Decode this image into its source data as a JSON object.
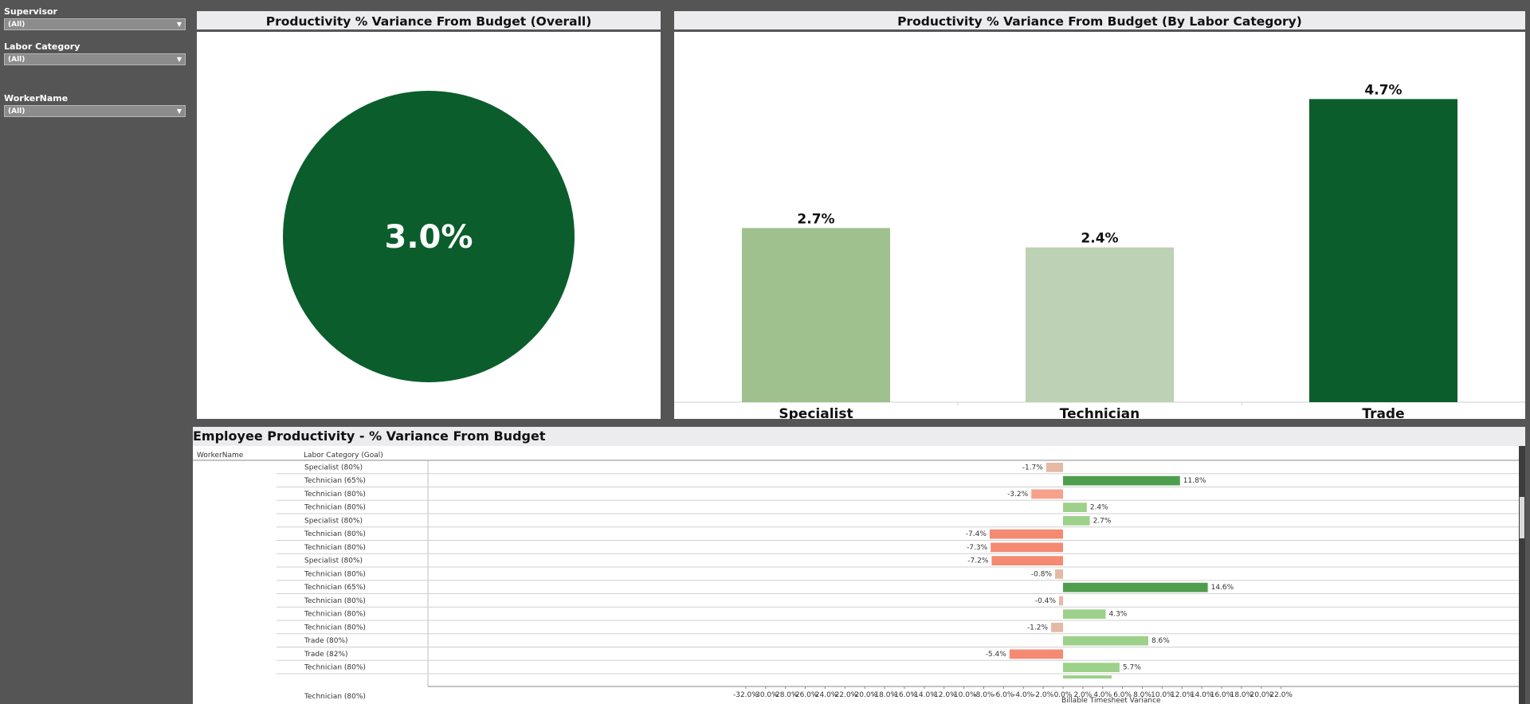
{
  "filters": [
    {
      "label": "Supervisor",
      "value": "(All)"
    },
    {
      "label": "Labor Category",
      "value": "(All)"
    },
    {
      "label": "WorkerName",
      "value": "(All)"
    }
  ],
  "overall": {
    "title": "Productivity % Variance From Budget (Overall)",
    "value_label": "3.0%",
    "color": "#0b5e2c"
  },
  "by_category": {
    "title": "Productivity % Variance From Budget (By Labor Category)"
  },
  "employee": {
    "title": "Employee Productivity - % Variance From Budget",
    "col_worker": "WorkerName",
    "col_category": "Labor Category (Goal)",
    "x_axis_label": "Billable Timesheet Variance",
    "partial_row_label": "Technician (80%)"
  },
  "chart_data": [
    {
      "type": "bar",
      "title": "Productivity % Variance From Budget (By Labor Category)",
      "categories": [
        "Specialist",
        "Technician",
        "Trade"
      ],
      "values": [
        2.7,
        2.4,
        4.7
      ],
      "value_labels": [
        "2.7%",
        "2.4%",
        "4.7%"
      ],
      "colors": [
        "#9ec18e",
        "#bdd1b4",
        "#0b5e2c"
      ],
      "ylim": [
        0,
        5.1
      ]
    },
    {
      "type": "bar",
      "orientation": "horizontal",
      "title": "Employee Productivity - % Variance From Budget",
      "xlabel": "Billable Timesheet Variance",
      "xlim": [
        -32,
        22
      ],
      "x_ticks": [
        "-32.0%",
        "-30.0%",
        "-28.0%",
        "-26.0%",
        "-24.0%",
        "-22.0%",
        "-20.0%",
        "-18.0%",
        "-16.0%",
        "-14.0%",
        "-12.0%",
        "-10.0%",
        "-8.0%",
        "-6.0%",
        "-4.0%",
        "-2.0%",
        "0.0%",
        "2.0%",
        "4.0%",
        "6.0%",
        "8.0%",
        "10.0%",
        "12.0%",
        "14.0%",
        "16.0%",
        "18.0%",
        "20.0%",
        "22.0%"
      ],
      "rows": [
        {
          "category": "Specialist",
          "goal": "(80%)",
          "value": -1.7,
          "label": "-1.7%"
        },
        {
          "category": "Technician",
          "goal": "(65%)",
          "value": 11.8,
          "label": "11.8%"
        },
        {
          "category": "Technician",
          "goal": "(80%)",
          "value": -3.2,
          "label": "-3.2%"
        },
        {
          "category": "Technician",
          "goal": "(80%)",
          "value": 2.4,
          "label": "2.4%"
        },
        {
          "category": "Specialist",
          "goal": "(80%)",
          "value": 2.7,
          "label": "2.7%"
        },
        {
          "category": "Technician",
          "goal": "(80%)",
          "value": -7.4,
          "label": "-7.4%"
        },
        {
          "category": "Technician",
          "goal": "(80%)",
          "value": -7.3,
          "label": "-7.3%"
        },
        {
          "category": "Specialist",
          "goal": "(80%)",
          "value": -7.2,
          "label": "-7.2%"
        },
        {
          "category": "Technician",
          "goal": "(80%)",
          "value": -0.8,
          "label": "-0.8%"
        },
        {
          "category": "Technician",
          "goal": "(65%)",
          "value": 14.6,
          "label": "14.6%"
        },
        {
          "category": "Technician",
          "goal": "(80%)",
          "value": -0.4,
          "label": "-0.4%"
        },
        {
          "category": "Technician",
          "goal": "(80%)",
          "value": 4.3,
          "label": "4.3%"
        },
        {
          "category": "Technician",
          "goal": "(80%)",
          "value": -1.2,
          "label": "-1.2%"
        },
        {
          "category": "Trade",
          "goal": "(80%)",
          "value": 8.6,
          "label": "8.6%"
        },
        {
          "category": "Trade",
          "goal": "(82%)",
          "value": -5.4,
          "label": "-5.4%"
        },
        {
          "category": "Technician",
          "goal": "(80%)",
          "value": 5.7,
          "label": "5.7%"
        }
      ],
      "partial_row_value": 4.9
    }
  ]
}
